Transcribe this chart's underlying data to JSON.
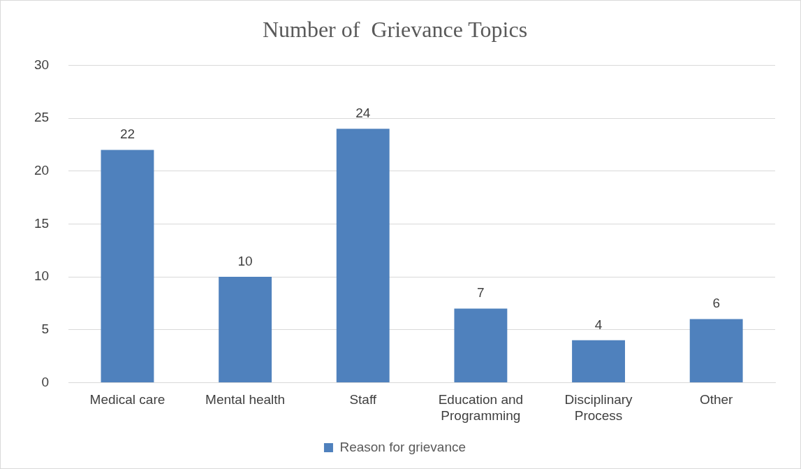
{
  "chart_data": {
    "type": "bar",
    "title": "Number of  Grievance Topics",
    "categories": [
      "Medical care",
      "Mental health",
      "Staff",
      "Education and Programming",
      "Disciplinary Process",
      "Other"
    ],
    "series": [
      {
        "name": "Reason for grievance",
        "color": "#4f81bd",
        "values": [
          22,
          10,
          24,
          7,
          4,
          6
        ]
      }
    ],
    "ylim": [
      0,
      30
    ],
    "yticks": [
      0,
      5,
      10,
      15,
      20,
      25,
      30
    ],
    "grid": "y",
    "legend": "bottom",
    "data_labels": true
  }
}
